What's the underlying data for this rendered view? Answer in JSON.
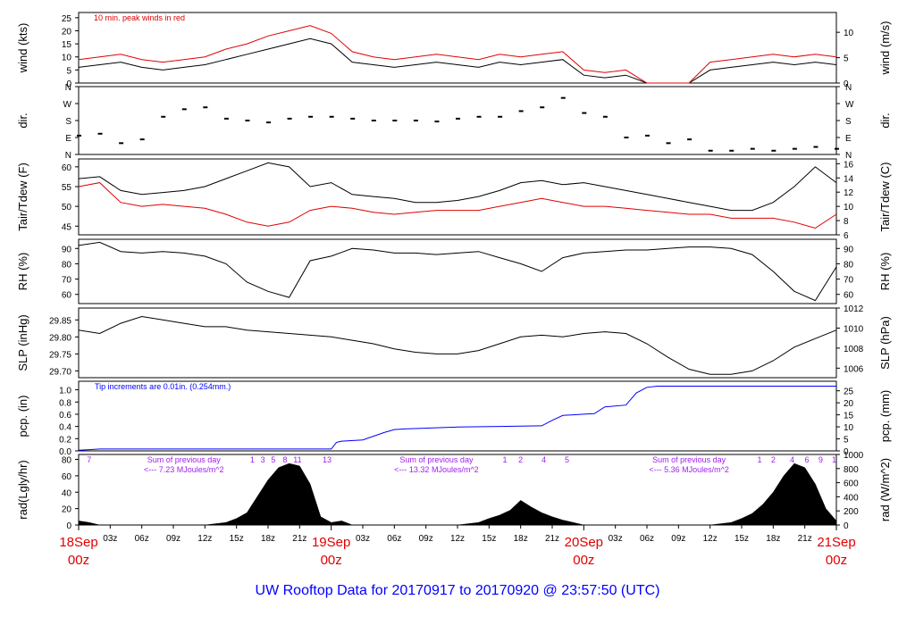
{
  "title": "UW Rooftop Data for 20170917  to  20170920 @ 23:57:50  (UTC)",
  "colors": {
    "black": "#000000",
    "red": "#e00000",
    "blue": "#0000ff",
    "purple": "#a020f0",
    "title": "#0000ff"
  },
  "time_axis": {
    "hour_ticks": [
      "03z",
      "06z",
      "09z",
      "12z",
      "15z",
      "18z",
      "21z",
      "03z",
      "06z",
      "09z",
      "12z",
      "15z",
      "18z",
      "21z",
      "03z",
      "06z",
      "09z",
      "12z",
      "15z",
      "18z",
      "21z"
    ],
    "day_labels": [
      {
        "date": "18Sep",
        "hour": "00z"
      },
      {
        "date": "19Sep",
        "hour": "00z"
      },
      {
        "date": "20Sep",
        "hour": "00z"
      },
      {
        "date": "21Sep",
        "hour": "00z"
      }
    ]
  },
  "chart_data": [
    {
      "type": "line",
      "name": "wind",
      "ylabel": "wind (kts)",
      "ylabel_right": "wind (m/s)",
      "yticks": [
        0,
        5,
        10,
        15,
        20,
        25
      ],
      "yticks_right": [
        0,
        5,
        10
      ],
      "ylim": [
        0,
        27
      ],
      "right_ylim": [
        0,
        13.9
      ],
      "annotation": "10 min. peak winds in red",
      "series": [
        {
          "name": "wind speed",
          "color": "#000000",
          "x": [
            0,
            2,
            4,
            6,
            8,
            10,
            12,
            14,
            16,
            18,
            20,
            22,
            24,
            26,
            28,
            30,
            32,
            34,
            36,
            38,
            40,
            42,
            44,
            46,
            48,
            50,
            52,
            54,
            56,
            58,
            60,
            62,
            64,
            66,
            68,
            70,
            72
          ],
          "y": [
            6,
            7,
            8,
            6,
            5,
            6,
            7,
            9,
            11,
            13,
            15,
            17,
            15,
            8,
            7,
            6,
            7,
            8,
            7,
            6,
            8,
            7,
            8,
            9,
            3,
            2,
            3,
            0,
            0,
            0,
            5,
            6,
            7,
            8,
            7,
            8,
            7
          ]
        },
        {
          "name": "10 min peak",
          "color": "#e00000",
          "x": [
            0,
            2,
            4,
            6,
            8,
            10,
            12,
            14,
            16,
            18,
            20,
            22,
            24,
            26,
            28,
            30,
            32,
            34,
            36,
            38,
            40,
            42,
            44,
            46,
            48,
            50,
            52,
            54,
            56,
            58,
            60,
            62,
            64,
            66,
            68,
            70,
            72
          ],
          "y": [
            9,
            10,
            11,
            9,
            8,
            9,
            10,
            13,
            15,
            18,
            20,
            22,
            19,
            12,
            10,
            9,
            10,
            11,
            10,
            9,
            11,
            10,
            11,
            12,
            5,
            4,
            5,
            0,
            0,
            0,
            8,
            9,
            10,
            11,
            10,
            11,
            10
          ]
        }
      ]
    },
    {
      "type": "scatter",
      "name": "direction",
      "ylabel": "dir.",
      "ylabel_right": "dir.",
      "ytick_labels": [
        "N",
        "E",
        "S",
        "W",
        "N"
      ],
      "ylim": [
        0,
        360
      ],
      "series": [
        {
          "name": "wind direction",
          "color": "#000000",
          "x": [
            0,
            2,
            4,
            6,
            8,
            10,
            12,
            14,
            16,
            18,
            20,
            22,
            24,
            26,
            28,
            30,
            32,
            34,
            36,
            38,
            40,
            42,
            44,
            46,
            48,
            50,
            52,
            54,
            56,
            58,
            60,
            62,
            64,
            66,
            68,
            70,
            72
          ],
          "y": [
            100,
            110,
            60,
            80,
            200,
            240,
            250,
            190,
            180,
            170,
            190,
            200,
            200,
            190,
            180,
            180,
            180,
            175,
            190,
            200,
            200,
            230,
            250,
            300,
            220,
            200,
            90,
            100,
            60,
            80,
            20,
            20,
            30,
            20,
            30,
            40,
            30
          ]
        }
      ]
    },
    {
      "type": "line",
      "name": "temperature",
      "ylabel": "Tair/Tdew (F)",
      "ylabel_right": "Tair/Tdew (C)",
      "yticks": [
        45,
        50,
        55,
        60
      ],
      "yticks_right": [
        6,
        8,
        10,
        12,
        14,
        16
      ],
      "ylim": [
        42.8,
        62
      ],
      "right_ylim": [
        6,
        16.67
      ],
      "series": [
        {
          "name": "Tair",
          "color": "#000000",
          "x": [
            0,
            2,
            4,
            6,
            8,
            10,
            12,
            14,
            16,
            18,
            20,
            22,
            24,
            26,
            28,
            30,
            32,
            34,
            36,
            38,
            40,
            42,
            44,
            46,
            48,
            50,
            52,
            54,
            56,
            58,
            60,
            62,
            64,
            66,
            68,
            70,
            72
          ],
          "y": [
            57,
            57.5,
            54,
            53,
            53.5,
            54,
            55,
            57,
            59,
            61,
            60,
            55,
            56,
            53,
            52.5,
            52,
            51,
            51,
            51.5,
            52.5,
            54,
            56,
            56.5,
            55.5,
            56,
            55,
            54,
            53,
            52,
            51,
            50,
            49,
            49,
            51,
            55,
            60,
            56
          ]
        },
        {
          "name": "Tdew",
          "color": "#e00000",
          "x": [
            0,
            2,
            4,
            6,
            8,
            10,
            12,
            14,
            16,
            18,
            20,
            22,
            24,
            26,
            28,
            30,
            32,
            34,
            36,
            38,
            40,
            42,
            44,
            46,
            48,
            50,
            52,
            54,
            56,
            58,
            60,
            62,
            64,
            66,
            68,
            70,
            72
          ],
          "y": [
            55,
            56,
            51,
            50,
            50.5,
            50,
            49.5,
            48,
            46,
            45,
            46,
            49,
            50,
            49.5,
            48.5,
            48,
            48.5,
            49,
            49,
            49,
            50,
            51,
            52,
            51,
            50,
            50,
            49.5,
            49,
            48.5,
            48,
            48,
            47,
            47,
            47,
            46,
            44.5,
            48
          ]
        }
      ]
    },
    {
      "type": "line",
      "name": "humidity",
      "ylabel": "RH (%)",
      "ylabel_right": "RH (%)",
      "yticks": [
        60,
        70,
        80,
        90
      ],
      "yticks_right": [
        60,
        70,
        80,
        90
      ],
      "ylim": [
        54,
        96
      ],
      "series": [
        {
          "name": "RH",
          "color": "#000000",
          "x": [
            0,
            2,
            4,
            6,
            8,
            10,
            12,
            14,
            16,
            18,
            20,
            22,
            24,
            26,
            28,
            30,
            32,
            34,
            36,
            38,
            40,
            42,
            44,
            46,
            48,
            50,
            52,
            54,
            56,
            58,
            60,
            62,
            64,
            66,
            68,
            70,
            72
          ],
          "y": [
            92,
            94,
            88,
            87,
            88,
            87,
            85,
            80,
            68,
            62,
            58,
            82,
            85,
            90,
            89,
            87,
            87,
            86,
            87,
            88,
            84,
            80,
            75,
            84,
            87,
            88,
            89,
            89,
            90,
            91,
            91,
            90,
            86,
            75,
            62,
            56,
            78
          ]
        }
      ]
    },
    {
      "type": "line",
      "name": "pressure",
      "ylabel": "SLP (inHg)",
      "ylabel_right": "SLP (hPa)",
      "yticks": [
        29.7,
        29.75,
        29.8,
        29.85
      ],
      "ytick_labels": [
        "29.70",
        "29.75",
        "29.80",
        "29.85"
      ],
      "yticks_right": [
        1006,
        1008,
        1010,
        1012
      ],
      "ylim": [
        29.68,
        29.885
      ],
      "right_ylim": [
        1005.05,
        1012.0
      ],
      "series": [
        {
          "name": "SLP",
          "color": "#000000",
          "x": [
            0,
            2,
            4,
            6,
            8,
            10,
            12,
            14,
            16,
            18,
            20,
            22,
            24,
            26,
            28,
            30,
            32,
            34,
            36,
            38,
            40,
            42,
            44,
            46,
            48,
            50,
            52,
            54,
            56,
            58,
            60,
            62,
            64,
            66,
            68,
            70,
            72
          ],
          "y": [
            29.82,
            29.81,
            29.84,
            29.86,
            29.85,
            29.84,
            29.83,
            29.83,
            29.82,
            29.815,
            29.81,
            29.805,
            29.8,
            29.79,
            29.78,
            29.765,
            29.755,
            29.75,
            29.75,
            29.76,
            29.78,
            29.8,
            29.805,
            29.8,
            29.81,
            29.815,
            29.81,
            29.78,
            29.74,
            29.705,
            29.69,
            29.69,
            29.7,
            29.73,
            29.77,
            29.795,
            29.82
          ]
        }
      ]
    },
    {
      "type": "line",
      "name": "precipitation",
      "ylabel": "pcp. (in)",
      "ylabel_right": "pcp. (mm)",
      "yticks": [
        0,
        0.2,
        0.4,
        0.6,
        0.8,
        1
      ],
      "ytick_labels": [
        "0.0",
        "0.2",
        "0.4",
        "0.6",
        "0.8",
        "1.0"
      ],
      "yticks_right": [
        0,
        5,
        10,
        15,
        20,
        25
      ],
      "ylim": [
        0,
        1.14
      ],
      "right_ylim": [
        0,
        28.96
      ],
      "annotation": "Tip increments are 0.01in. (0.254mm.)",
      "series": [
        {
          "name": "accumulated",
          "color": "#0000ff",
          "x": [
            0,
            1,
            2,
            24,
            24.5,
            25,
            27,
            28,
            29,
            30,
            31,
            36,
            40,
            44,
            45,
            46,
            48,
            49,
            50,
            52,
            53,
            54,
            55,
            72
          ],
          "y": [
            0.01,
            0.02,
            0.03,
            0.03,
            0.14,
            0.16,
            0.18,
            0.24,
            0.3,
            0.35,
            0.36,
            0.39,
            0.4,
            0.41,
            0.5,
            0.58,
            0.6,
            0.61,
            0.72,
            0.75,
            0.95,
            1.04,
            1.06,
            1.06
          ]
        }
      ]
    },
    {
      "type": "area",
      "name": "radiation",
      "ylabel": "rad(Lgly/hr)",
      "ylabel_right": "rad (W/m^2)",
      "yticks": [
        0,
        20,
        40,
        60,
        80
      ],
      "yticks_right": [
        0,
        200,
        400,
        600,
        800,
        1000
      ],
      "ylim": [
        0,
        86
      ],
      "right_ylim": [
        0,
        1000
      ],
      "series": [
        {
          "name": "solar radiation",
          "color": "#000000",
          "x": [
            0,
            1,
            2,
            12,
            14,
            15,
            16,
            17,
            18,
            19,
            20,
            21,
            22,
            23,
            24,
            25,
            26,
            36,
            38,
            39,
            40,
            41,
            42,
            43,
            44,
            45,
            46,
            47,
            48,
            60,
            62,
            63,
            64,
            65,
            66,
            67,
            68,
            69,
            70,
            71,
            72
          ],
          "y": [
            5,
            3,
            0,
            0,
            3,
            8,
            15,
            35,
            55,
            70,
            75,
            72,
            50,
            10,
            3,
            5,
            0,
            0,
            3,
            8,
            12,
            18,
            30,
            22,
            15,
            10,
            6,
            3,
            0,
            0,
            3,
            8,
            14,
            25,
            40,
            60,
            75,
            70,
            50,
            20,
            5
          ]
        }
      ],
      "hourly_marks": {
        "day1": [
          "7",
          "1",
          "3",
          "5",
          "8",
          "11",
          "13"
        ],
        "day2": [
          "1",
          "2",
          "4",
          "5"
        ],
        "day3": [
          "1",
          "2",
          "4",
          "6",
          "9",
          "1"
        ]
      },
      "daily_sums": [
        {
          "title": "Sum of previous day",
          "value": "<--- 7.23 MJoules/m^2"
        },
        {
          "title": "Sum of previous day",
          "value": "<--- 13.32 MJoules/m^2"
        },
        {
          "title": "Sum of previous day",
          "value": "<--- 5.36 MJoules/m^2"
        }
      ]
    }
  ]
}
